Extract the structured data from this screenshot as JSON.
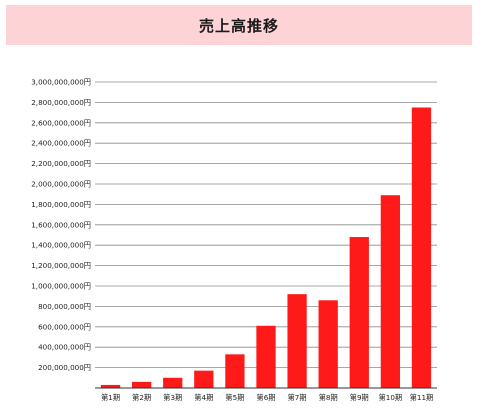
{
  "header": {
    "title": "売上高推移"
  },
  "colors": {
    "banner": "#fdd3d6",
    "bar": "#ff1a1a",
    "grid": "#8c8c8c",
    "axis": "#333333"
  },
  "chart_data": {
    "type": "bar",
    "title": "売上高推移",
    "xlabel": "",
    "ylabel": "",
    "ylim": [
      0,
      3000000000
    ],
    "grid": true,
    "legend": "none",
    "yticks": [
      0,
      200000000,
      400000000,
      600000000,
      800000000,
      1000000000,
      1200000000,
      1400000000,
      1600000000,
      1800000000,
      2000000000,
      2200000000,
      2400000000,
      2600000000,
      2800000000,
      3000000000
    ],
    "ytick_labels": [
      "",
      "200,000,000円",
      "400,000,000円",
      "600,000,000円",
      "800,000,000円",
      "1,000,000,000円",
      "1,200,000,000円",
      "1,400,000,000円",
      "1,600,000,000円",
      "1,800,000,000円",
      "2,000,000,000円",
      "2,200,000,000円",
      "2,400,000,000円",
      "2,600,000,000円",
      "2,800,000,000円",
      "3,000,000,000円"
    ],
    "categories": [
      "第1期",
      "第2期",
      "第3期",
      "第4期",
      "第5期",
      "第6期",
      "第7期",
      "第8期",
      "第9期",
      "第10期",
      "第11期"
    ],
    "values": [
      30000000,
      60000000,
      100000000,
      170000000,
      330000000,
      610000000,
      920000000,
      860000000,
      1480000000,
      1890000000,
      2750000000
    ]
  }
}
